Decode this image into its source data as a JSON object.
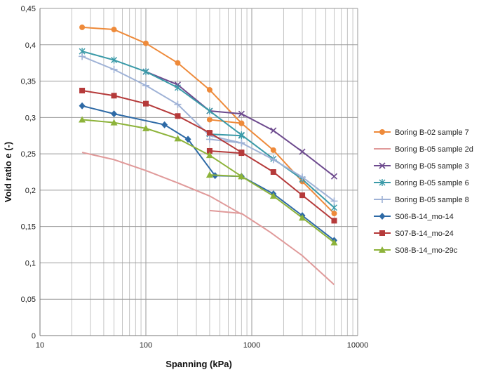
{
  "chart_data": {
    "type": "line",
    "xlabel": "Spanning (kPa)",
    "ylabel": "Void ratio e (-)",
    "x_scale": "log",
    "xlim": [
      10,
      10000
    ],
    "ylim": [
      0,
      0.45
    ],
    "x_ticks": [
      "10",
      "100",
      "1000",
      "10000"
    ],
    "y_ticks": [
      "0",
      "0,05",
      "0,1",
      "0,15",
      "0,2",
      "0,25",
      "0,3",
      "0,35",
      "0,4",
      "0,45"
    ],
    "grid": true,
    "legend_position": "right",
    "series": [
      {
        "name": "Boring B-02 sample 7",
        "color": "#ee8a3a",
        "marker": "circle",
        "x": [
          25,
          50,
          100,
          200,
          400,
          800,
          1600,
          3000,
          6000
        ],
        "y": [
          0.424,
          0.421,
          0.402,
          0.375,
          0.338,
          0.292,
          0.255,
          0.212,
          0.168
        ]
      },
      {
        "name": "Boring B-05 sample 2d",
        "color": "#e09a9a",
        "marker": "none",
        "x": [
          25,
          50,
          100,
          200,
          400,
          800
        ],
        "y": [
          0.252,
          0.242,
          0.227,
          0.21,
          0.192,
          0.167
        ]
      },
      {
        "name": "Boring B-05 sample 3",
        "color": "#6d4a8e",
        "marker": "x",
        "x": [
          100,
          200,
          400,
          800,
          1600,
          3000,
          6000
        ],
        "y": [
          0.363,
          0.345,
          0.309,
          0.305,
          0.282,
          0.253,
          0.219
        ]
      },
      {
        "name": "Boring B-05 sample 6",
        "color": "#3a9aa8",
        "marker": "star",
        "x": [
          25,
          50,
          100,
          200,
          400,
          800,
          1600,
          3000,
          6000
        ],
        "y": [
          0.391,
          0.379,
          0.363,
          0.341,
          0.309,
          0.276,
          0.243,
          0.215,
          0.176
        ]
      },
      {
        "name": "Boring B-05 sample 8",
        "color": "#9fb2d6",
        "marker": "plus",
        "x": [
          25,
          50,
          100,
          200,
          400,
          800,
          1600,
          3000,
          6000
        ],
        "y": [
          0.384,
          0.366,
          0.344,
          0.318,
          0.275,
          0.265,
          0.242,
          0.218,
          0.185
        ]
      },
      {
        "name": "S06-B-14_mo-14",
        "color": "#2e6aa6",
        "marker": "diamond",
        "x": [
          25,
          50,
          150,
          250,
          450,
          800,
          1600,
          3000,
          6000
        ],
        "y": [
          0.316,
          0.305,
          0.29,
          0.27,
          0.22,
          0.219,
          0.195,
          0.165,
          0.131
        ]
      },
      {
        "name": "S07-B-14_mo-24",
        "color": "#b53a3a",
        "marker": "square",
        "x": [
          25,
          50,
          100,
          200,
          400,
          800,
          1600,
          3000,
          6000
        ],
        "y": [
          0.337,
          0.33,
          0.319,
          0.302,
          0.279,
          0.252,
          0.225,
          0.193,
          0.158
        ]
      },
      {
        "name": "S08-B-14_mo-29c",
        "color": "#8db33a",
        "marker": "triangle",
        "x": [
          25,
          50,
          100,
          200,
          400,
          800,
          1600,
          3000,
          6000
        ],
        "y": [
          0.297,
          0.293,
          0.285,
          0.271,
          0.248,
          0.219,
          0.192,
          0.162,
          0.128
        ]
      }
    ],
    "extra_segments": [
      {
        "series": "Boring B-02 sample 7",
        "x": [
          400,
          800
        ],
        "y": [
          0.297,
          0.292
        ]
      },
      {
        "series": "Boring B-05 sample 2d",
        "x": [
          400,
          800,
          1500,
          3000,
          6000
        ],
        "y": [
          0.172,
          0.168,
          0.142,
          0.11,
          0.07
        ]
      },
      {
        "series": "Boring B-05 sample 6",
        "x": [
          400,
          800
        ],
        "y": [
          0.277,
          0.275
        ]
      },
      {
        "series": "Boring B-05 sample 8",
        "x": [
          400,
          800
        ],
        "y": [
          0.27,
          0.265
        ]
      },
      {
        "series": "S07-B-14_mo-24",
        "x": [
          400,
          800
        ],
        "y": [
          0.254,
          0.251
        ]
      },
      {
        "series": "S08-B-14_mo-29c",
        "x": [
          400,
          800
        ],
        "y": [
          0.221,
          0.219
        ]
      }
    ]
  }
}
